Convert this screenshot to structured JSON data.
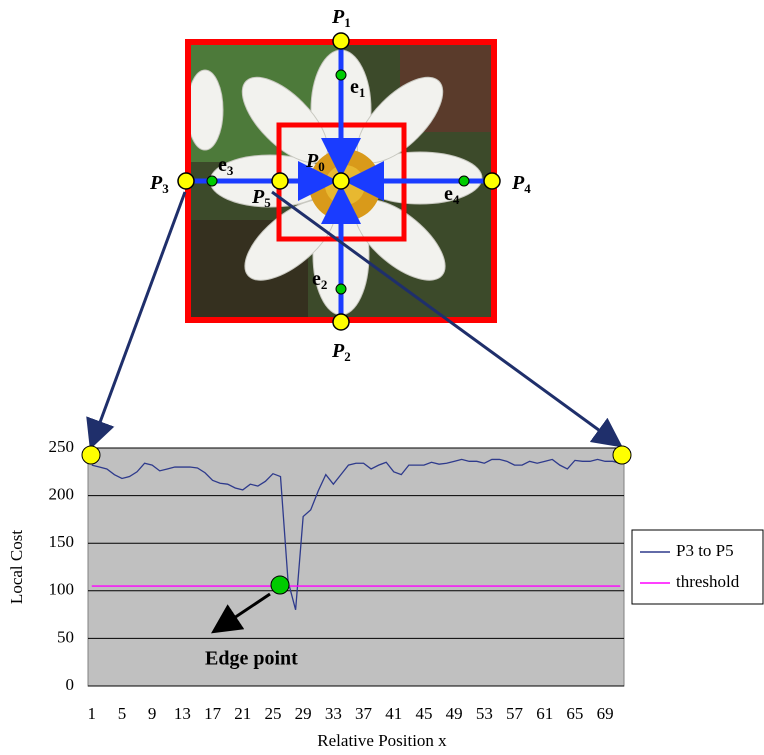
{
  "diagram": {
    "labels": [
      {
        "letter": "P",
        "sub": "1"
      },
      {
        "letter": "P",
        "sub": "2"
      },
      {
        "letter": "P",
        "sub": "3"
      },
      {
        "letter": "P",
        "sub": "4"
      },
      {
        "letter": "P",
        "sub": "5"
      },
      {
        "letter": "P",
        "sub": "0"
      },
      {
        "letter": "e",
        "sub": "1"
      },
      {
        "letter": "e",
        "sub": "2"
      },
      {
        "letter": "e",
        "sub": "3"
      },
      {
        "letter": "e",
        "sub": "4"
      }
    ],
    "annotation": "Edge point"
  },
  "chart_data": {
    "type": "line",
    "xlabel": "Relative Position x",
    "ylabel": "Local Cost",
    "categories": [
      1,
      null,
      null,
      null,
      5,
      null,
      null,
      null,
      9,
      null,
      null,
      null,
      13,
      null,
      null,
      null,
      17,
      null,
      null,
      null,
      21,
      null,
      null,
      null,
      25,
      null,
      null,
      null,
      29,
      null,
      null,
      null,
      33,
      null,
      null,
      null,
      37,
      null,
      null,
      null,
      41,
      null,
      null,
      null,
      45,
      null,
      null,
      null,
      49,
      null,
      null,
      null,
      53,
      null,
      null,
      null,
      57,
      null,
      null,
      null,
      61,
      null,
      null,
      null,
      65,
      null,
      null,
      null,
      69,
      null,
      null
    ],
    "series": [
      {
        "name": "P3 to P5",
        "color": "#2e3a8c",
        "values": [
          232,
          230,
          228,
          222,
          218,
          220,
          225,
          234,
          232,
          226,
          228,
          230,
          230,
          230,
          229,
          224,
          216,
          213,
          212,
          208,
          206,
          212,
          210,
          215,
          223,
          220,
          110,
          80,
          178,
          185,
          205,
          222,
          212,
          222,
          232,
          234,
          234,
          228,
          232,
          235,
          225,
          222,
          232,
          232,
          232,
          235,
          233,
          234,
          236,
          238,
          236,
          236,
          234,
          238,
          238,
          236,
          232,
          232,
          236,
          234,
          236,
          238,
          232,
          228,
          237,
          236,
          236,
          238,
          236,
          236,
          234
        ]
      },
      {
        "name": "threshold",
        "color": "#ff00ff",
        "values": [
          105,
          105,
          105,
          105,
          105,
          105,
          105,
          105,
          105,
          105,
          105,
          105,
          105,
          105,
          105,
          105,
          105,
          105,
          105,
          105,
          105,
          105,
          105,
          105,
          105,
          105,
          105,
          105,
          105,
          105,
          105,
          105,
          105,
          105,
          105,
          105,
          105,
          105,
          105,
          105,
          105,
          105,
          105,
          105,
          105,
          105,
          105,
          105,
          105,
          105,
          105,
          105,
          105,
          105,
          105,
          105,
          105,
          105,
          105,
          105,
          105,
          105,
          105,
          105,
          105,
          105,
          105,
          105,
          105,
          105,
          105
        ]
      }
    ],
    "ylim": [
      0,
      250
    ],
    "yticks": [
      0,
      50,
      100,
      150,
      200,
      250
    ],
    "grid": true,
    "legend": "right"
  }
}
